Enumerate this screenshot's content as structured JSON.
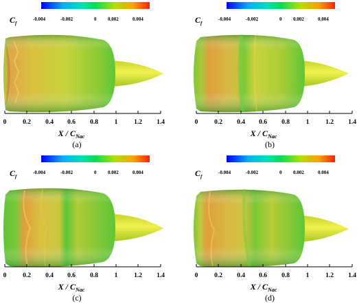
{
  "colorbar": {
    "label_main": "C",
    "label_sub": "f",
    "ticks": [
      "-0.004",
      "-0.002",
      "0",
      "0.002",
      "0.004"
    ],
    "tick_values": [
      -0.004,
      -0.002,
      0,
      0.002,
      0.004
    ],
    "range": [
      -0.005,
      0.005
    ],
    "colors": [
      "#0000ff",
      "#00b0ff",
      "#00e0b0",
      "#00e050",
      "#b0e000",
      "#ffa000",
      "#ff2000"
    ]
  },
  "x_axis": {
    "label_main": "X / C",
    "label_sub": "Nac",
    "ticks": [
      "0",
      "0.2",
      "0.4",
      "0.6",
      "0.8",
      "1",
      "1.2",
      "1.4"
    ],
    "tick_values": [
      0,
      0.2,
      0.4,
      0.6,
      0.8,
      1.0,
      1.2,
      1.4
    ],
    "range": [
      0,
      1.4
    ]
  },
  "panels": [
    {
      "id": "a",
      "caption": "(a)"
    },
    {
      "id": "b",
      "caption": "(b)"
    },
    {
      "id": "c",
      "caption": "(c)"
    },
    {
      "id": "d",
      "caption": "(d)"
    }
  ],
  "colors": {
    "nacelle_green": "#4cc43a",
    "nacelle_yellow": "#c8d23a",
    "nacelle_orange": "#e0a040",
    "spinner": "#e2e632"
  }
}
